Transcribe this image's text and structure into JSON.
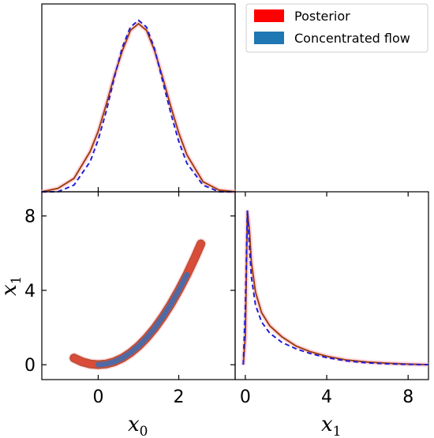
{
  "chart_data": {
    "type": "corner",
    "legend": {
      "placement": "top-right",
      "entries": [
        {
          "label": "Posterior",
          "color": "#ff0000"
        },
        {
          "label": "Concentrated flow",
          "color": "#1f77b4"
        }
      ]
    },
    "colors": {
      "posterior_line": "#a0400f",
      "posterior_fill": "#ff4b4b",
      "flow_line": "#1f1fd6",
      "flow_fill": "#3a6fb5",
      "halo": "#ffb6c8"
    },
    "marginal_x0": {
      "xlim": [
        -1.4,
        3.4
      ],
      "x": [
        -1.4,
        -1.0,
        -0.6,
        -0.2,
        0.0,
        0.2,
        0.4,
        0.6,
        0.8,
        1.0,
        1.2,
        1.4,
        1.6,
        1.8,
        2.0,
        2.2,
        2.6,
        3.0,
        3.4
      ],
      "posterior": [
        0.0,
        0.02,
        0.08,
        0.24,
        0.36,
        0.52,
        0.69,
        0.84,
        0.96,
        1.0,
        0.96,
        0.84,
        0.68,
        0.51,
        0.35,
        0.22,
        0.06,
        0.01,
        0.0
      ],
      "flow": [
        0.0,
        0.0,
        0.04,
        0.18,
        0.31,
        0.48,
        0.68,
        0.86,
        0.98,
        1.02,
        0.98,
        0.85,
        0.66,
        0.47,
        0.3,
        0.17,
        0.04,
        0.0,
        0.0
      ]
    },
    "joint_x0_x1": {
      "xlim": [
        -1.4,
        3.4
      ],
      "ylim": [
        -0.8,
        9.3
      ],
      "x": [
        -0.6,
        -0.4,
        -0.2,
        0.0,
        0.2,
        0.4,
        0.6,
        0.8,
        1.0,
        1.2,
        1.4,
        1.6,
        1.8,
        2.0,
        2.2,
        2.4,
        2.55
      ],
      "y": [
        0.36,
        0.16,
        0.04,
        0.0,
        0.04,
        0.16,
        0.36,
        0.64,
        1.0,
        1.44,
        1.96,
        2.56,
        3.24,
        4.0,
        4.84,
        5.76,
        6.5
      ],
      "contour_labels": [
        "Posterior",
        "Concentrated flow"
      ]
    },
    "marginal_x1": {
      "xlim": [
        -0.5,
        9.0
      ],
      "ylim": [
        -0.8,
        9.3
      ],
      "x": [
        -0.1,
        0.0,
        0.1,
        0.2,
        0.3,
        0.5,
        0.8,
        1.2,
        1.8,
        2.5,
        3.2,
        4.0,
        5.0,
        6.0,
        7.0,
        8.0,
        9.0
      ],
      "posterior": [
        0.0,
        1.5,
        8.3,
        7.2,
        5.5,
        3.9,
        2.8,
        2.1,
        1.5,
        1.0,
        0.7,
        0.45,
        0.25,
        0.14,
        0.08,
        0.03,
        0.0
      ],
      "flow": [
        0.0,
        3.0,
        8.3,
        6.4,
        4.7,
        3.2,
        2.3,
        1.7,
        1.2,
        0.85,
        0.6,
        0.38,
        0.2,
        0.1,
        0.05,
        0.02,
        0.0
      ]
    },
    "xticks_x0": [
      "0",
      "2"
    ],
    "xticks_x1": [
      "0",
      "4",
      "8"
    ],
    "yticks_x1": [
      "0",
      "4",
      "8"
    ],
    "xlabel_left": {
      "main": "x",
      "sub": "0"
    },
    "xlabel_right": {
      "main": "x",
      "sub": "1"
    },
    "ylabel_left": {
      "main": "x",
      "sub": "1"
    }
  }
}
